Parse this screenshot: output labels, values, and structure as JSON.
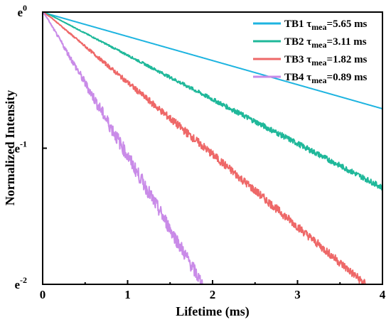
{
  "chart_data": {
    "type": "line",
    "xlabel": "Lifetime (ms)",
    "ylabel": "Normalized Intensity",
    "xlim": [
      0,
      4
    ],
    "ylim": [
      -2,
      0
    ],
    "y_scale": "natural log",
    "x_ticks": [
      "0",
      "1",
      "2",
      "3",
      "4"
    ],
    "y_ticks": [
      {
        "base": "e",
        "exp": "0",
        "value": 0
      },
      {
        "base": "e",
        "exp": "-1",
        "value": -1
      },
      {
        "base": "e",
        "exp": "-2",
        "value": -2
      }
    ],
    "grid": false,
    "legend_position": "top-right",
    "series": [
      {
        "name": "TB1",
        "label_prefix": "τ",
        "label_sub": "mea",
        "label_value": "=5.65 ms",
        "color": "#1EB4E0",
        "x": [
          0,
          0.1,
          4
        ],
        "y": [
          0,
          -0.02,
          -0.71
        ],
        "noise": 0.0
      },
      {
        "name": "TB2",
        "label_prefix": "τ",
        "label_sub": "mea",
        "label_value": "=3.11 ms",
        "color": "#1FB89A",
        "x": [
          0,
          0.1,
          4
        ],
        "y": [
          0,
          -0.025,
          -1.29
        ],
        "noise": 0.02
      },
      {
        "name": "TB3",
        "label_prefix": "τ",
        "label_sub": "mea",
        "label_value": "=1.82 ms",
        "color": "#EE6868",
        "x": [
          0,
          0.1,
          3.8
        ],
        "y": [
          0,
          -0.04,
          -2.0
        ],
        "noise": 0.03
      },
      {
        "name": "TB4",
        "label_prefix": "τ",
        "label_sub": "mea",
        "label_value": "=0.89 ms",
        "color": "#C98BE8",
        "x": [
          0,
          0.05,
          1.88
        ],
        "y": [
          0,
          -0.04,
          -2.0
        ],
        "noise": 0.05
      }
    ]
  }
}
